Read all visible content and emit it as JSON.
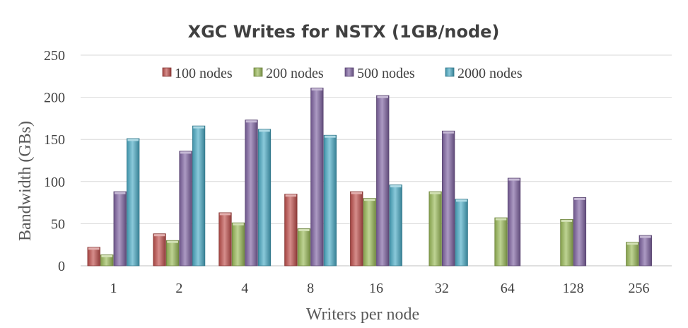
{
  "chart_data": {
    "type": "bar",
    "title": "XGC Writes for NSTX (1GB/node)",
    "xlabel": "Writers per node",
    "ylabel": "Bandwidth (GBs)",
    "ylim": [
      0,
      250
    ],
    "yticks": [
      0,
      50,
      100,
      150,
      200,
      250
    ],
    "categories": [
      "1",
      "2",
      "4",
      "8",
      "16",
      "32",
      "64",
      "128",
      "256"
    ],
    "legend_position": "top",
    "grid": "horizontal",
    "series": [
      {
        "name": "100 nodes",
        "color": "#c0504d",
        "values": [
          22,
          38,
          63,
          85,
          88,
          null,
          null,
          null,
          null
        ]
      },
      {
        "name": "200 nodes",
        "color": "#9bbb59",
        "values": [
          13,
          30,
          51,
          44,
          80,
          88,
          57,
          55,
          28
        ]
      },
      {
        "name": "500 nodes",
        "color": "#8064a2",
        "values": [
          88,
          136,
          173,
          211,
          202,
          160,
          104,
          81,
          36
        ]
      },
      {
        "name": "2000 nodes",
        "color": "#4bacc6",
        "values": [
          151,
          166,
          162,
          155,
          96,
          79,
          null,
          null,
          null
        ]
      }
    ]
  }
}
